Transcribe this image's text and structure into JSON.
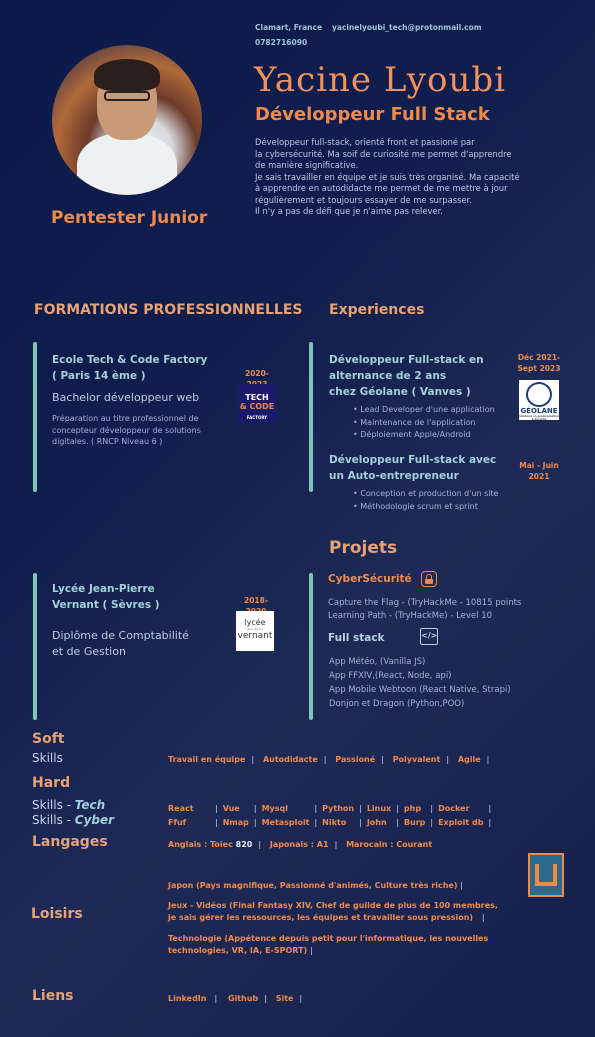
{
  "header": {
    "location": "Clamart, France",
    "email": "yacinelyoubi_tech@protonmail.com",
    "phone": "0782716090",
    "name": "Yacine Lyoubi",
    "role": "Développeur Full Stack",
    "bio": [
      "Développeur full-stack, orienté front et passioné par",
      "la cybersécurité. Ma soif de curiosité me permet  d'apprendre",
      "de manière significative.",
      "Je sais travailler en équipe et je suis très organisé. Ma capacité",
      "à apprendre en autodidacte me permet de me mettre à jour",
      "régulièrement et toujours essayer de me surpasser.",
      "Il n'y a pas de défi que je n'aime pas relever."
    ],
    "tagline": "Pentester Junior"
  },
  "sections": {
    "formations": "FORMATIONS PROFESSIONNELLES",
    "experiences": "Experiences",
    "projets": "Projets"
  },
  "formations": [
    {
      "school": [
        "Ecole Tech & Code Factory",
        "( Paris 14 ème )"
      ],
      "diploma": "Bachelor développeur web",
      "desc": [
        "Préparation au titre professionnel de",
        "concepteur développeur de solutions",
        "digitales. ( RNCP Niveau 6 )"
      ],
      "date": "2020-2023",
      "logo": [
        "TECH",
        "& CODE",
        "FACTORY"
      ]
    },
    {
      "school": [
        "Lycée Jean-Pierre",
        "Vernant ( Sèvres )"
      ],
      "diploma": [
        "Diplôme de Comptabilité",
        "et de Gestion"
      ],
      "date": "2018-2020",
      "logo": [
        "lycée",
        "Jean-Pierre",
        "vernant"
      ]
    }
  ],
  "experiences": [
    {
      "title": [
        "Développeur Full-stack en",
        "alternance de 2 ans",
        "chez Géolane ( Vanves )"
      ],
      "date": [
        "Déc 2021-",
        "Sept 2023"
      ],
      "bullets": [
        "Lead Developer d'une application",
        "Maintenance de l'application",
        "Déploiement Apple/Android"
      ],
      "logo": [
        "GÉOLANE",
        "Solutions en géolocalisation & Sécurité"
      ]
    },
    {
      "title": [
        "Développeur Full-stack avec",
        "un Auto-entrepreneur"
      ],
      "date": [
        "Mai - Juin",
        "2021"
      ],
      "bullets": [
        "Conception et production d'un site",
        "Méthodologie scrum et sprint"
      ]
    }
  ],
  "projets": {
    "cyber": {
      "title": "CyberSécurité",
      "lines": [
        "Capture the Flag - (TryHackMe - 10815 points",
        "Learning Path - (TryHackMe) - Level 10"
      ]
    },
    "fullstack": {
      "title": "Full stack",
      "icon_text": "</>",
      "lines": [
        "App Météo, (Vanilla JS)",
        "App FFXIV,(React, Node, api)",
        "App Mobile Webtoon (React Native, Strapi)",
        "Donjon et Dragon (Python,POO)"
      ]
    }
  },
  "soft": {
    "h": "Soft",
    "sub": "Skills",
    "items": [
      "Travail en équipe",
      "Autodidacte",
      "Passioné",
      "Polyvalent",
      "Agile"
    ]
  },
  "hard": {
    "h": "Hard",
    "tech_label": "Skills - ",
    "tech_em": "Tech",
    "cyber_label": "Skills - ",
    "cyber_em": "Cyber",
    "tech": [
      "React",
      "Vue",
      "Mysql",
      "Python",
      "Linux",
      "php",
      "Docker"
    ],
    "cyber": [
      "Ffuf",
      "Nmap",
      "Metasploit",
      "Nikto",
      "John",
      "Burp",
      "Exploit db"
    ]
  },
  "langages": {
    "h": "Langages",
    "prefix": "Anglais : Toiec ",
    "score": "820",
    "rest1": "Japonais : A1",
    "rest2": "Marocain : Courant"
  },
  "loisirs": {
    "h": "Loisirs",
    "items": [
      [
        "Japon (Pays magnifique, Passionné d'animés, Culture très riche)"
      ],
      [
        "Jeux - Vidéos (Final Fantasy XIV, Chef de guilde de plus de 100 membres,",
        "je sais gérer les ressources, les équipes et travailler sous pression)"
      ],
      [
        "Technologie (Appétence depuis petit pour l'informatique, les nouvelles",
        "technologies, VR, IA, E-SPORT)"
      ]
    ]
  },
  "liens": {
    "h": "Liens",
    "items": [
      "LinkedIn",
      "Github",
      "Site"
    ]
  },
  "colors": {
    "accent": "#f08a4b",
    "teal": "#7cc6b9",
    "bg": "#0b1a4a"
  }
}
